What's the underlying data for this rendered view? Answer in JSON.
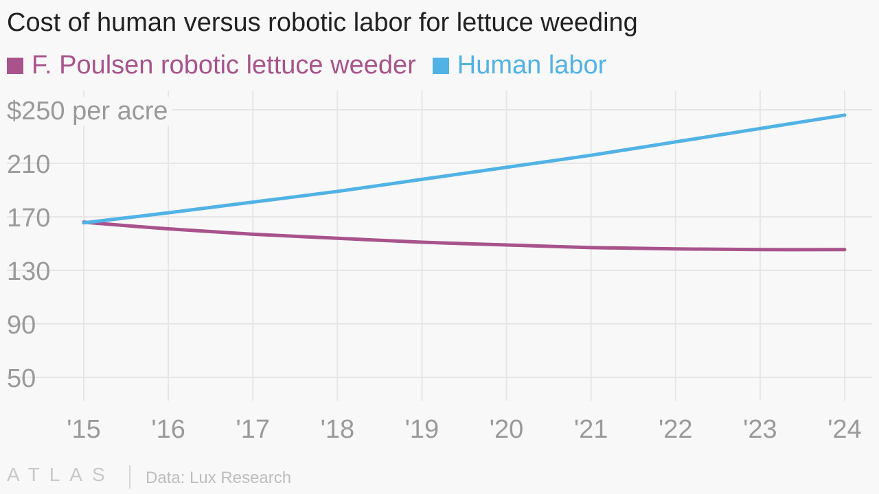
{
  "colors": {
    "robot": "#a8538c",
    "human": "#51b2e5",
    "grid": "#e6e6e6",
    "tick": "#9a9a9a"
  },
  "chart_data": {
    "type": "line",
    "title": "Cost of human versus robotic labor for lettuce weeding",
    "x": [
      "'15",
      "'16",
      "'17",
      "'18",
      "'19",
      "'20",
      "'21",
      "'22",
      "'23",
      "'24"
    ],
    "series": [
      {
        "name": "F. Poulsen robotic lettuce weeder",
        "color": "#a8538c",
        "values": [
          166,
          161,
          157,
          154,
          151,
          149,
          147,
          146,
          145.5,
          145.5
        ]
      },
      {
        "name": "Human labor",
        "color": "#51b2e5",
        "values": [
          165.5,
          173,
          181,
          189,
          198,
          207,
          216,
          226,
          236,
          246
        ]
      }
    ],
    "y_ticks": [
      50,
      90,
      130,
      170,
      210,
      250
    ],
    "y_tick_labels": [
      "50",
      "90",
      "130",
      "170",
      "210",
      "$250 per acre"
    ],
    "ylim": [
      50,
      250
    ],
    "grid": true,
    "legend_position": "top-left"
  },
  "footer": {
    "brand": "ATLAS",
    "source": "Data: Lux Research"
  }
}
